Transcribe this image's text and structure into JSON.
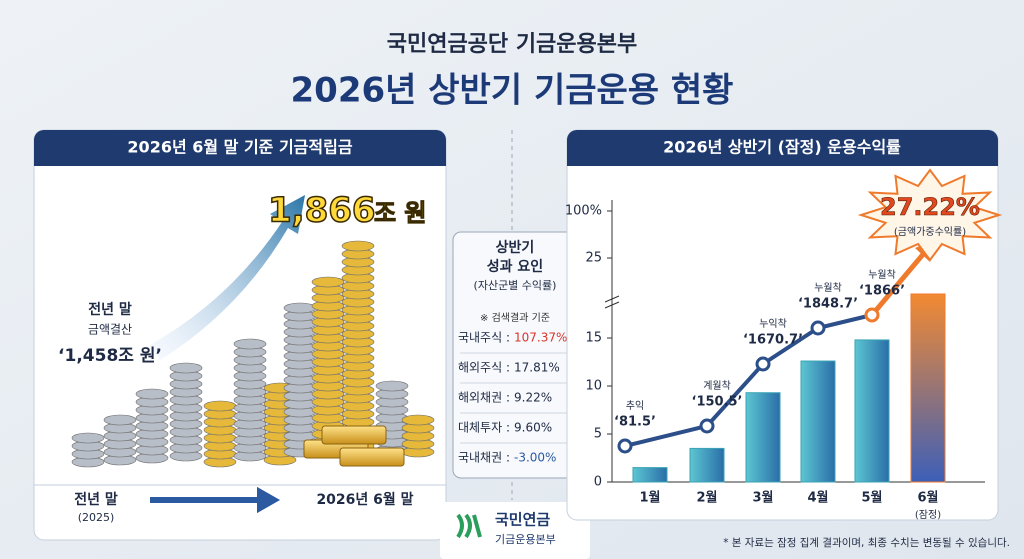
{
  "header": {
    "org": "국민연금공단 기금운용본부",
    "title": "2026년 상반기 기금운용 현황"
  },
  "left_panel": {
    "title": "2026년 6월 말 기준 기금적립금",
    "total_number": "1,866",
    "total_unit": "조 원",
    "prev_label": "전년 말",
    "prev_sub": "금액결산",
    "prev_value": "‘1,458조 원’",
    "timeline_start": "전년 말",
    "timeline_start_year": "(2025)",
    "timeline_end": "2026년 6월 말"
  },
  "factors": {
    "title_1": "상반기",
    "title_2": "성과 요인",
    "subtitle": "(자산군별 수익률)",
    "basis": "※ 검색결과 기준",
    "rows": [
      {
        "name": "국내주식 :",
        "value": "107.37%"
      },
      {
        "name": "해외주식 :",
        "value": "17.81%"
      },
      {
        "name": "해외채권 :",
        "value": "9.22%"
      },
      {
        "name": "대체투자 :",
        "value": "9.60%"
      },
      {
        "name": "국내채권 :",
        "value": "-3.00%"
      }
    ]
  },
  "logo": {
    "name": "국민연금",
    "sub": "기금운용본부"
  },
  "chart_data": {
    "type": "bar",
    "title": "2026년 상반기 (잠정) 운용수익률",
    "categories": [
      "1월",
      "2월",
      "3월",
      "4월",
      "5월",
      "6월"
    ],
    "category_note": "(잠정)",
    "values": [
      1.5,
      3.5,
      9.3,
      12.6,
      14.8,
      20.5
    ],
    "color": "#3aa3b4",
    "highlight_color": "#ef7a2c",
    "ylim": [
      0,
      100
    ],
    "yticks": [
      0,
      5,
      10,
      15,
      25,
      {
        "value": 100,
        "label": "100%"
      }
    ],
    "axis_break": [
      15,
      25
    ],
    "annotations": [
      {
        "tag": "추익",
        "label": "‘81.5’"
      },
      {
        "tag": "계월착",
        "label": "‘150.5’"
      },
      {
        "tag": "누익착",
        "label": "‘1670.7’"
      },
      {
        "tag": "누월착",
        "label": "‘1848.7’"
      },
      {
        "tag": "누월착",
        "label": "‘1866’"
      }
    ],
    "callout": {
      "value": 27.22,
      "label": "27.22%",
      "note": "(금액가중수익률)"
    }
  },
  "footnote": "* 본 자료는 잠정 집계 결과이며, 최종 수치는 변동될 수 있습니다."
}
